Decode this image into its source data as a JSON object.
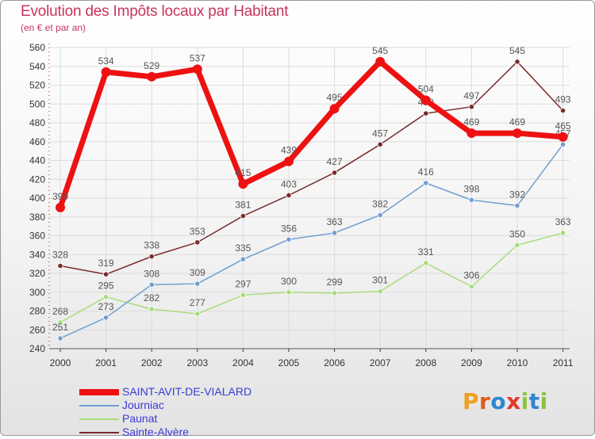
{
  "header": {
    "title": "Evolution des Impôts locaux par Habitant",
    "subtitle": "(en € et par an)"
  },
  "logo": {
    "text": "Proxiti",
    "letter_colors": [
      "#f0a020",
      "#e05a1c",
      "#2f86d1",
      "#e03a2c",
      "#8cc43c",
      "#2f86d1",
      "#8cc43c"
    ]
  },
  "chart_data": {
    "type": "line",
    "title": "Evolution des Impôts locaux par Habitant",
    "subtitle": "(en € et par an)",
    "xlabel": "",
    "ylabel": "",
    "x": [
      "2000",
      "2001",
      "2002",
      "2003",
      "2004",
      "2005",
      "2006",
      "2007",
      "2008",
      "2009",
      "2010",
      "2011"
    ],
    "ylim": [
      240,
      560
    ],
    "yticks": [
      240,
      260,
      280,
      300,
      320,
      340,
      360,
      380,
      400,
      420,
      440,
      460,
      480,
      500,
      520,
      540,
      560
    ],
    "grid": true,
    "legend_position": "bottom-left",
    "series": [
      {
        "name": "SAINT-AVIT-DE-VIALARD",
        "color": "#ee1111",
        "values": [
          390,
          534,
          529,
          537,
          415,
          439,
          495,
          545,
          504,
          469,
          469,
          465
        ]
      },
      {
        "name": "Journiac",
        "color": "#6f9fd0",
        "values": [
          251,
          273,
          308,
          309,
          335,
          356,
          363,
          382,
          416,
          398,
          392,
          457
        ]
      },
      {
        "name": "Paunat",
        "color": "#a8dc7c",
        "values": [
          268,
          295,
          282,
          277,
          297,
          300,
          299,
          301,
          331,
          306,
          350,
          363
        ]
      },
      {
        "name": "Sainte-Alvère",
        "color": "#7a2a2a",
        "values": [
          328,
          319,
          338,
          353,
          381,
          403,
          427,
          457,
          490,
          497,
          545,
          493
        ]
      }
    ]
  }
}
